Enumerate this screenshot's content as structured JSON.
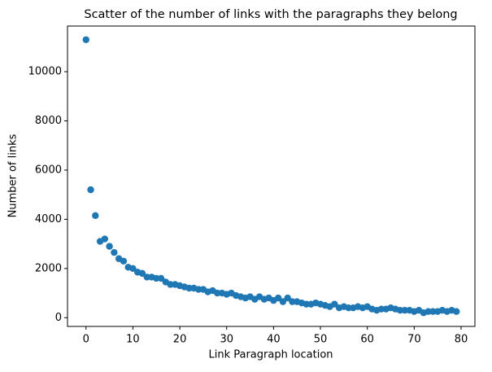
{
  "chart_data": {
    "type": "scatter",
    "title": "Scatter of the number of links with the paragraphs they belong",
    "x_label": "Link Paragraph location",
    "y_label": "Number of links",
    "color": "#1f77b4",
    "x": [
      0,
      1,
      2,
      3,
      4,
      5,
      6,
      7,
      8,
      9,
      10,
      11,
      12,
      13,
      14,
      15,
      16,
      17,
      18,
      19,
      20,
      21,
      22,
      23,
      24,
      25,
      26,
      27,
      28,
      29,
      30,
      31,
      32,
      33,
      34,
      35,
      36,
      37,
      38,
      39,
      40,
      41,
      42,
      43,
      44,
      45,
      46,
      47,
      48,
      49,
      50,
      51,
      52,
      53,
      54,
      55,
      56,
      57,
      58,
      59,
      60,
      61,
      62,
      63,
      64,
      65,
      66,
      67,
      68,
      69,
      70,
      71,
      72,
      73,
      74,
      75,
      76,
      77,
      78,
      79
    ],
    "values": [
      11300,
      5200,
      4150,
      3100,
      3200,
      2900,
      2650,
      2400,
      2300,
      2050,
      2000,
      1850,
      1800,
      1650,
      1650,
      1600,
      1600,
      1450,
      1350,
      1350,
      1300,
      1250,
      1200,
      1200,
      1150,
      1150,
      1050,
      1100,
      1000,
      1000,
      950,
      1000,
      900,
      850,
      800,
      850,
      750,
      850,
      750,
      800,
      700,
      800,
      650,
      800,
      650,
      650,
      600,
      550,
      550,
      600,
      550,
      500,
      450,
      550,
      400,
      450,
      400,
      400,
      450,
      400,
      450,
      350,
      300,
      350,
      350,
      400,
      350,
      300,
      300,
      300,
      250,
      300,
      200,
      250,
      250,
      250,
      300,
      250,
      300,
      250
    ],
    "xlim": [
      -3.95,
      82.95
    ],
    "ylim": [
      -355,
      11855
    ],
    "xticks": [
      0,
      10,
      20,
      30,
      40,
      50,
      60,
      70,
      80
    ],
    "yticks": [
      0,
      2000,
      4000,
      6000,
      8000,
      10000
    ]
  }
}
